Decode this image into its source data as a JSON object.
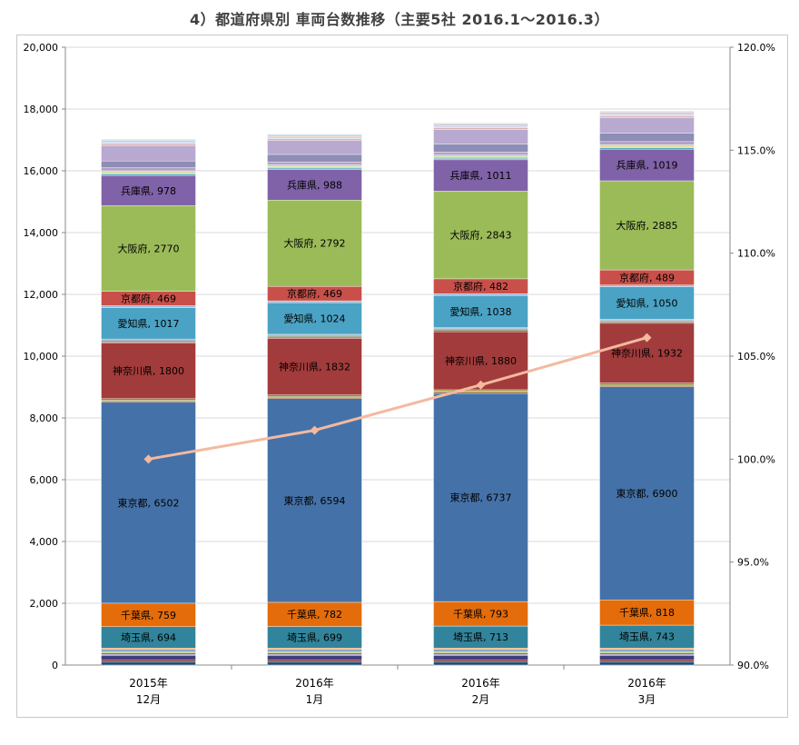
{
  "chart_data": {
    "type": "bar",
    "stacked": true,
    "title": "4）都道府県別 車両台数推移（主要5社 2016.1～2016.3）",
    "categories": [
      [
        "2015年",
        "12月"
      ],
      [
        "2016年",
        "1月"
      ],
      [
        "2016年",
        "2月"
      ],
      [
        "2016年",
        "3月"
      ]
    ],
    "ylim": [
      0,
      20000
    ],
    "y_ticks": [
      "0",
      "2,000",
      "4,000",
      "6,000",
      "8,000",
      "10,000",
      "12,000",
      "14,000",
      "16,000",
      "18,000",
      "20,000"
    ],
    "y2lim": [
      90.0,
      120.0
    ],
    "y2_ticks": [
      "90.0%",
      "95.0%",
      "100.0%",
      "105.0%",
      "110.0%",
      "115.0%",
      "120.0%"
    ],
    "grid": true,
    "series": [
      {
        "name": "",
        "color": "#1f4e79",
        "values": [
          100,
          100,
          100,
          100
        ],
        "labeled": false
      },
      {
        "name": "",
        "color": "#7b2c2c",
        "values": [
          70,
          70,
          70,
          70
        ],
        "labeled": false
      },
      {
        "name": "",
        "color": "#3f3f7f",
        "values": [
          130,
          130,
          130,
          130
        ],
        "labeled": false
      },
      {
        "name": "",
        "color": "#c0504d",
        "values": [
          40,
          40,
          40,
          40
        ],
        "labeled": false
      },
      {
        "name": "",
        "color": "#4f81bd",
        "values": [
          50,
          50,
          50,
          50
        ],
        "labeled": false
      },
      {
        "name": "",
        "color": "#9bbb59",
        "values": [
          40,
          40,
          40,
          40
        ],
        "labeled": false
      },
      {
        "name": "",
        "color": "#8064a2",
        "values": [
          40,
          40,
          40,
          40
        ],
        "labeled": false
      },
      {
        "name": "",
        "color": "#4bacc6",
        "values": [
          40,
          40,
          40,
          40
        ],
        "labeled": false
      },
      {
        "name": "",
        "color": "#f79646",
        "values": [
          40,
          40,
          40,
          40
        ],
        "labeled": false
      },
      {
        "name": "埼玉県",
        "color": "#31849b",
        "values": [
          694,
          699,
          713,
          743
        ],
        "labeled": true
      },
      {
        "name": "千葉県",
        "color": "#e46c0a",
        "values": [
          759,
          782,
          793,
          818
        ],
        "labeled": true
      },
      {
        "name": "東京都",
        "color": "#4472a8",
        "values": [
          6502,
          6594,
          6737,
          6900
        ],
        "labeled": true
      },
      {
        "name": "",
        "color": "#a0522d",
        "values": [
          40,
          40,
          40,
          40
        ],
        "labeled": false
      },
      {
        "name": "",
        "color": "#6b8e23",
        "values": [
          30,
          30,
          30,
          30
        ],
        "labeled": false
      },
      {
        "name": "",
        "color": "#9b7f2b",
        "values": [
          50,
          50,
          50,
          50
        ],
        "labeled": false
      },
      {
        "name": "神奈川県",
        "color": "#a23b3b",
        "values": [
          1800,
          1832,
          1880,
          1932
        ],
        "labeled": true
      },
      {
        "name": "",
        "color": "#8b5e3c",
        "values": [
          40,
          40,
          40,
          40
        ],
        "labeled": false
      },
      {
        "name": "",
        "color": "#556b2f",
        "values": [
          30,
          30,
          30,
          30
        ],
        "labeled": false
      },
      {
        "name": "",
        "color": "#6f6f9f",
        "values": [
          30,
          30,
          30,
          30
        ],
        "labeled": false
      },
      {
        "name": "",
        "color": "#7f9fbf",
        "values": [
          30,
          30,
          30,
          30
        ],
        "labeled": false
      },
      {
        "name": "愛知県",
        "color": "#4aa3c4",
        "values": [
          1017,
          1024,
          1038,
          1050
        ],
        "labeled": true
      },
      {
        "name": "",
        "color": "#9fb8d8",
        "values": [
          60,
          60,
          60,
          60
        ],
        "labeled": false
      },
      {
        "name": "京都府",
        "color": "#c9504a",
        "values": [
          469,
          469,
          482,
          489
        ],
        "labeled": true
      },
      {
        "name": "大阪府",
        "color": "#9bbb59",
        "values": [
          2770,
          2792,
          2843,
          2885
        ],
        "labeled": true
      },
      {
        "name": "兵庫県",
        "color": "#8062a8",
        "values": [
          978,
          988,
          1011,
          1019
        ],
        "labeled": true
      },
      {
        "name": "",
        "color": "#4bacc6",
        "values": [
          50,
          50,
          50,
          50
        ],
        "labeled": false
      },
      {
        "name": "",
        "color": "#f2c45a",
        "values": [
          40,
          40,
          40,
          40
        ],
        "labeled": false
      },
      {
        "name": "",
        "color": "#c5d9a0",
        "values": [
          60,
          60,
          60,
          60
        ],
        "labeled": false
      },
      {
        "name": "",
        "color": "#b3a2c7",
        "values": [
          100,
          100,
          100,
          100
        ],
        "labeled": false
      },
      {
        "name": "",
        "color": "#8d8db5",
        "values": [
          220,
          240,
          260,
          270
        ],
        "labeled": false
      },
      {
        "name": "",
        "color": "#b8a9d0",
        "values": [
          500,
          450,
          470,
          500
        ],
        "labeled": false
      },
      {
        "name": "",
        "color": "#d9b3b3",
        "values": [
          60,
          60,
          60,
          60
        ],
        "labeled": false
      },
      {
        "name": "",
        "color": "#c6d9f1",
        "values": [
          60,
          60,
          60,
          60
        ],
        "labeled": false
      },
      {
        "name": "",
        "color": "#e6b9b8",
        "values": [
          40,
          50,
          50,
          60
        ],
        "labeled": false
      },
      {
        "name": "",
        "color": "#b7dee8",
        "values": [
          40,
          40,
          40,
          40
        ],
        "labeled": false
      }
    ],
    "line_series": {
      "name": "",
      "axis": "right",
      "color": "#f4b9a0",
      "values": [
        100.0,
        101.4,
        103.6,
        105.9
      ]
    }
  }
}
